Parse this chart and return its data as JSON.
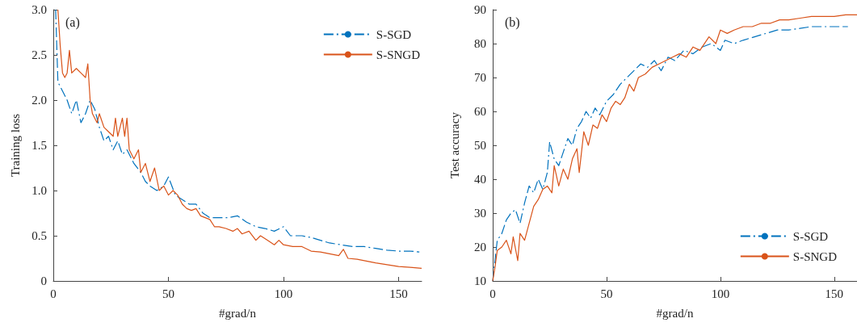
{
  "chart_data": [
    {
      "type": "line",
      "title": "(a)",
      "xlabel": "#grad/n",
      "ylabel": "Training loss",
      "xlim": [
        0,
        160
      ],
      "xticks": [
        0,
        50,
        100,
        150
      ],
      "ylim": [
        0,
        3
      ],
      "yticks": [
        {
          "value": 0,
          "label": "0"
        },
        0.5,
        {
          "value": 1,
          "label": "1.0"
        },
        1.5,
        {
          "value": 2,
          "label": "2.0"
        },
        2.5,
        {
          "value": 3,
          "label": "3.0"
        }
      ],
      "grid": false,
      "legend": "top right",
      "marker": "none",
      "series": [
        {
          "name": "S-SGD",
          "color": "#0072bd",
          "line_style": "dashed",
          "x": [
            1,
            2,
            4,
            6,
            8,
            10,
            12,
            14,
            16,
            18,
            20,
            22,
            24,
            26,
            28,
            30,
            32,
            35,
            38,
            40,
            42,
            45,
            48,
            50,
            53,
            56,
            59,
            62,
            65,
            68,
            72,
            76,
            80,
            84,
            88,
            92,
            96,
            100,
            103,
            108,
            112,
            116,
            120,
            125,
            130,
            135,
            140,
            145,
            150,
            155,
            159
          ],
          "values": [
            3.0,
            2.2,
            2.1,
            2.0,
            1.85,
            2.0,
            1.75,
            1.85,
            2.0,
            1.9,
            1.7,
            1.55,
            1.6,
            1.45,
            1.55,
            1.4,
            1.45,
            1.3,
            1.2,
            1.1,
            1.05,
            1.0,
            1.05,
            1.15,
            0.95,
            0.9,
            0.85,
            0.85,
            0.75,
            0.7,
            0.7,
            0.7,
            0.72,
            0.65,
            0.6,
            0.58,
            0.55,
            0.6,
            0.5,
            0.5,
            0.48,
            0.45,
            0.42,
            0.4,
            0.38,
            0.38,
            0.36,
            0.34,
            0.33,
            0.33,
            0.32
          ]
        },
        {
          "name": "S-SNGD",
          "color": "#d95319",
          "line_style": "solid",
          "x": [
            2,
            3,
            4,
            5,
            6,
            7,
            8,
            10,
            12,
            14,
            15,
            16,
            17,
            19,
            20,
            22,
            24,
            26,
            27,
            28,
            30,
            31,
            32,
            33,
            35,
            37,
            38,
            40,
            42,
            44,
            46,
            48,
            50,
            52,
            54,
            56,
            58,
            60,
            62,
            64,
            66,
            68,
            70,
            72,
            75,
            78,
            80,
            82,
            85,
            88,
            90,
            93,
            96,
            98,
            100,
            104,
            108,
            112,
            116,
            120,
            124,
            126,
            128,
            132,
            136,
            140,
            145,
            150,
            155,
            160
          ],
          "values": [
            3.0,
            2.6,
            2.3,
            2.25,
            2.3,
            2.55,
            2.3,
            2.35,
            2.3,
            2.25,
            2.4,
            2.0,
            1.85,
            1.75,
            1.85,
            1.7,
            1.65,
            1.6,
            1.8,
            1.6,
            1.8,
            1.6,
            1.8,
            1.45,
            1.35,
            1.45,
            1.2,
            1.3,
            1.1,
            1.25,
            1.0,
            1.05,
            0.95,
            1.0,
            0.95,
            0.85,
            0.8,
            0.78,
            0.8,
            0.72,
            0.7,
            0.68,
            0.6,
            0.6,
            0.58,
            0.55,
            0.58,
            0.52,
            0.55,
            0.45,
            0.5,
            0.45,
            0.4,
            0.45,
            0.4,
            0.38,
            0.38,
            0.33,
            0.32,
            0.3,
            0.28,
            0.35,
            0.25,
            0.24,
            0.22,
            0.2,
            0.18,
            0.16,
            0.15,
            0.14
          ]
        }
      ]
    },
    {
      "type": "line",
      "title": "(b)",
      "xlabel": "#grad/n",
      "ylabel": "Test accuracy",
      "xlim": [
        0,
        160
      ],
      "xticks": [
        0,
        50,
        100,
        150
      ],
      "ylim": [
        10,
        90
      ],
      "yticks": [
        10,
        20,
        30,
        40,
        50,
        60,
        70,
        80,
        90
      ],
      "grid": false,
      "legend": "bottom right",
      "marker": "none",
      "series": [
        {
          "name": "S-SGD",
          "color": "#0072bd",
          "line_style": "dashed",
          "x": [
            0,
            1,
            2,
            4,
            6,
            8,
            10,
            12,
            14,
            16,
            18,
            20,
            22,
            24,
            25,
            27,
            29,
            31,
            33,
            35,
            37,
            39,
            41,
            43,
            45,
            47,
            50,
            53,
            56,
            59,
            62,
            65,
            68,
            71,
            74,
            77,
            80,
            84,
            88,
            92,
            96,
            100,
            102,
            106,
            110,
            115,
            120,
            125,
            130,
            135,
            140,
            145,
            150,
            156
          ],
          "values": [
            10,
            16,
            22,
            24,
            28,
            30,
            31,
            27,
            33,
            38,
            36,
            40,
            37,
            42,
            51,
            46,
            44,
            48,
            52,
            50,
            55,
            57,
            60,
            58,
            61,
            59,
            63,
            65,
            68,
            70,
            72,
            74,
            73,
            75,
            72,
            76,
            75,
            78,
            77,
            79,
            80,
            78,
            81,
            80,
            81,
            82,
            83,
            84,
            84,
            84.5,
            85,
            85,
            85,
            85
          ]
        },
        {
          "name": "S-SNGD",
          "color": "#d95319",
          "line_style": "solid",
          "x": [
            0,
            1,
            2,
            4,
            6,
            8,
            9,
            11,
            12,
            14,
            16,
            18,
            20,
            22,
            24,
            26,
            27,
            29,
            31,
            33,
            35,
            37,
            38,
            40,
            42,
            44,
            46,
            48,
            50,
            52,
            54,
            56,
            58,
            60,
            62,
            64,
            67,
            70,
            73,
            76,
            79,
            82,
            85,
            88,
            91,
            95,
            98,
            100,
            103,
            106,
            110,
            114,
            118,
            122,
            126,
            130,
            135,
            140,
            145,
            150,
            155,
            160
          ],
          "values": [
            10,
            14,
            19,
            20,
            22,
            18,
            23,
            16,
            24,
            22,
            27,
            32,
            34,
            37,
            38,
            36,
            44,
            38,
            43,
            40,
            46,
            49,
            42,
            54,
            50,
            56,
            55,
            59,
            57,
            61,
            63,
            62,
            64,
            68,
            66,
            70,
            71,
            73,
            74,
            75,
            76,
            77,
            76,
            79,
            78,
            82,
            80,
            84,
            83,
            84,
            85,
            85,
            86,
            86,
            87,
            87,
            87.5,
            88,
            88,
            88,
            88.5,
            88.5
          ]
        }
      ]
    }
  ]
}
